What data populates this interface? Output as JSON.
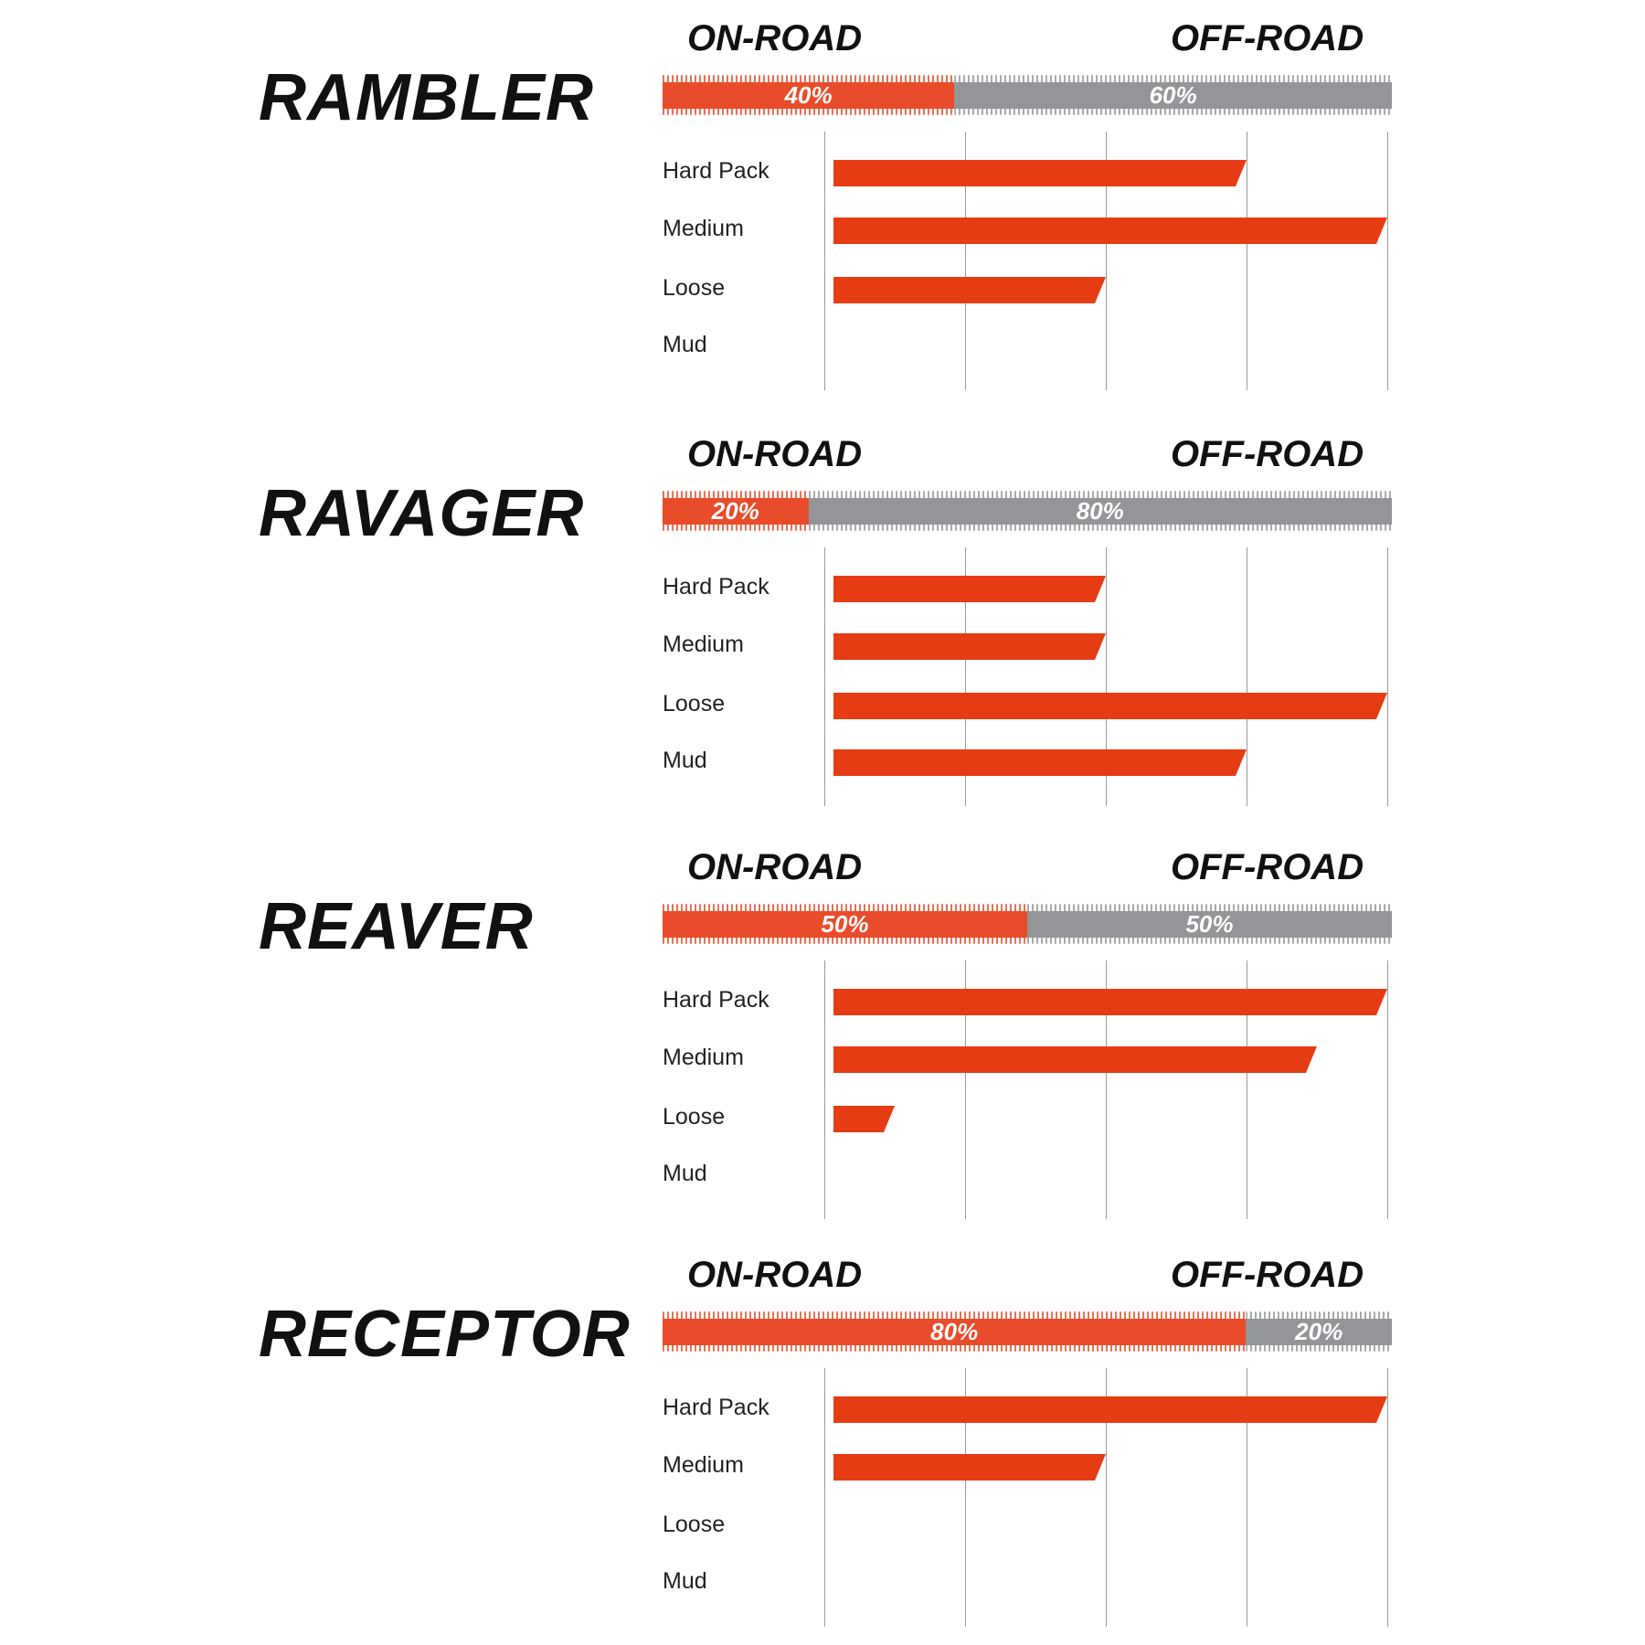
{
  "chart_data": {
    "type": "bar",
    "orientation": "horizontal",
    "categories": [
      "Hard Pack",
      "Medium",
      "Loose",
      "Mud"
    ],
    "xlim": [
      0,
      4
    ],
    "grid": true,
    "on_road_label": "ON-ROAD",
    "off_road_label": "OFF-ROAD",
    "colors": {
      "on_road": "#e84c2b",
      "off_road": "#939598",
      "bar": "#e63c14"
    },
    "tires": [
      {
        "name": "RAMBLER",
        "on_road": 40,
        "off_road": 60,
        "on_label": "40%",
        "off_label": "60%",
        "values": [
          3,
          4,
          2,
          0
        ]
      },
      {
        "name": "RAVAGER",
        "on_road": 20,
        "off_road": 80,
        "on_label": "20%",
        "off_label": "80%",
        "values": [
          2,
          2,
          4,
          3
        ]
      },
      {
        "name": "REAVER",
        "on_road": 50,
        "off_road": 50,
        "on_label": "50%",
        "off_label": "50%",
        "values": [
          4,
          3.5,
          0.5,
          0
        ]
      },
      {
        "name": "RECEPTOR",
        "on_road": 80,
        "off_road": 20,
        "on_label": "80%",
        "off_label": "20%",
        "values": [
          4,
          2,
          0,
          0
        ]
      }
    ]
  }
}
